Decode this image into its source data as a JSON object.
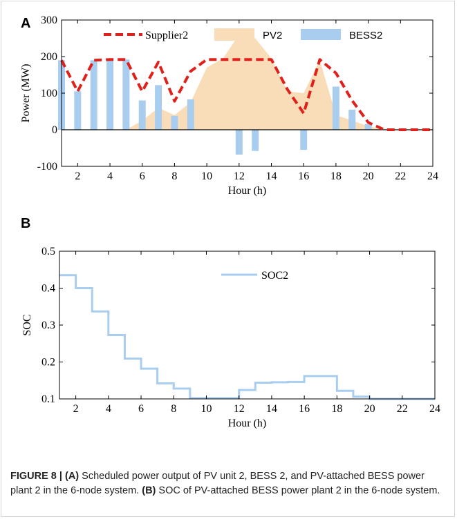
{
  "caption": {
    "figure_label": "FIGURE 8 |",
    "part_a_label": "(A)",
    "part_a_text": "Scheduled power output of PV unit 2, BESS 2, and PV-attached BESS power plant 2 in the 6-node system.",
    "part_b_label": "(B)",
    "part_b_text": "SOC of PV-attached BESS power plant 2 in the 6-node system."
  },
  "colors": {
    "supplier": "#e0201b",
    "pv": "#f9dcb8",
    "bess": "#a9cdee",
    "soc": "#a9cdee"
  },
  "chart_data": [
    {
      "panel": "A",
      "type": "bar",
      "xlabel": "Hour (h)",
      "ylabel": "Power (MW)",
      "xlim": [
        1,
        24
      ],
      "ylim": [
        -100,
        300
      ],
      "xticks": [
        2,
        4,
        6,
        8,
        10,
        12,
        14,
        16,
        18,
        20,
        22,
        24
      ],
      "yticks": [
        -100,
        0,
        100,
        200,
        300
      ],
      "legend_position": "top",
      "grid": false,
      "series": [
        {
          "name": "Supplier2",
          "type": "line",
          "x": [
            1,
            2,
            3,
            4,
            5,
            6,
            7,
            8,
            9,
            10,
            11,
            12,
            13,
            14,
            15,
            16,
            17,
            18,
            19,
            20,
            21,
            22,
            23,
            24
          ],
          "values": [
            190,
            105,
            190,
            192,
            192,
            105,
            185,
            78,
            160,
            192,
            192,
            192,
            192,
            192,
            110,
            45,
            192,
            155,
            80,
            20,
            0,
            0,
            0,
            0
          ]
        },
        {
          "name": "PV2",
          "type": "area",
          "x": [
            1,
            2,
            3,
            4,
            5,
            6,
            7,
            8,
            9,
            10,
            11,
            12,
            13,
            14,
            15,
            16,
            17,
            18,
            19,
            20,
            21,
            22,
            23,
            24
          ],
          "values": [
            0,
            0,
            0,
            0,
            0,
            25,
            60,
            40,
            75,
            170,
            195,
            260,
            250,
            195,
            105,
            100,
            190,
            40,
            25,
            10,
            0,
            0,
            0,
            0
          ]
        },
        {
          "name": "BESS2",
          "type": "bar",
          "x": [
            1,
            2,
            3,
            4,
            5,
            6,
            7,
            8,
            9,
            10,
            11,
            12,
            13,
            14,
            15,
            16,
            17,
            18,
            19,
            20,
            21,
            22,
            23,
            24
          ],
          "values": [
            190,
            105,
            190,
            192,
            192,
            80,
            122,
            38,
            83,
            0,
            0,
            -68,
            -58,
            0,
            0,
            -55,
            0,
            118,
            55,
            15,
            0,
            0,
            0,
            0
          ]
        }
      ]
    },
    {
      "panel": "B",
      "type": "line",
      "step": true,
      "xlabel": "Hour (h)",
      "ylabel": "SOC",
      "xlim": [
        1,
        24
      ],
      "ylim": [
        0.1,
        0.5
      ],
      "xticks": [
        2,
        4,
        6,
        8,
        10,
        12,
        14,
        16,
        18,
        20,
        22,
        24
      ],
      "yticks": [
        0.1,
        0.2,
        0.3,
        0.4,
        0.5
      ],
      "legend_position": "top-center",
      "grid": false,
      "series": [
        {
          "name": "SOC2",
          "x": [
            1,
            2,
            3,
            4,
            5,
            6,
            7,
            8,
            9,
            10,
            11,
            12,
            13,
            14,
            15,
            16,
            17,
            18,
            19,
            20,
            21,
            22,
            23,
            24
          ],
          "values": [
            0.435,
            0.4,
            0.337,
            0.273,
            0.209,
            0.182,
            0.142,
            0.128,
            0.102,
            0.102,
            0.102,
            0.124,
            0.144,
            0.145,
            0.146,
            0.162,
            0.162,
            0.122,
            0.106,
            0.1,
            0.1,
            0.1,
            0.1,
            0.1
          ]
        }
      ]
    }
  ]
}
